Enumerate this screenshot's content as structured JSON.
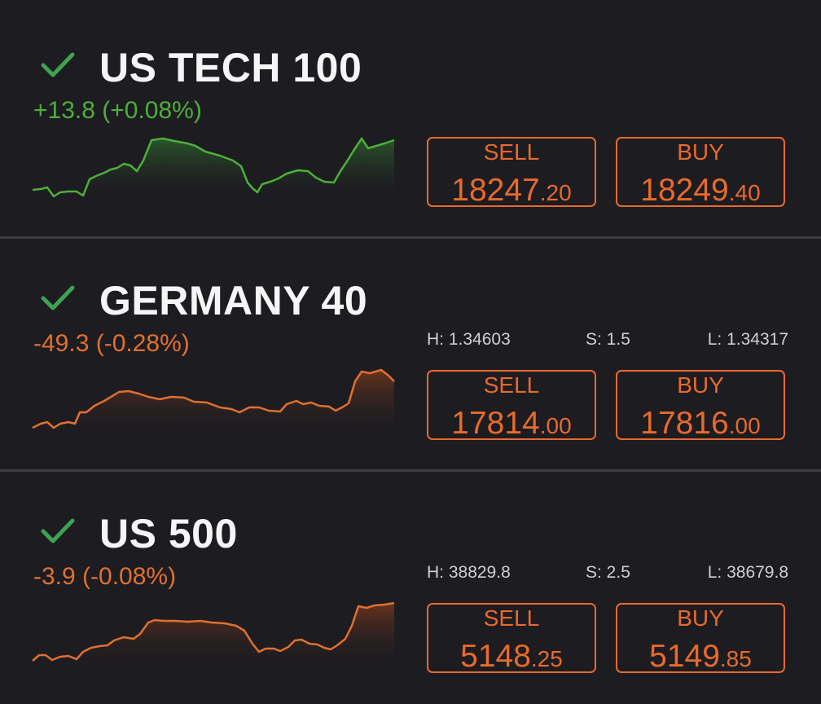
{
  "instruments": [
    {
      "name": "US TECH 100",
      "change": "+13.8 (+0.08%)",
      "trend": "up",
      "line_color": "#4caf3a",
      "stats": null,
      "sell": {
        "label": "SELL",
        "int": "18247",
        "dec": ".20"
      },
      "buy": {
        "label": "BUY",
        "int": "18249",
        "dec": ".40"
      }
    },
    {
      "name": "GERMANY 40",
      "change": "-49.3 (-0.28%)",
      "trend": "down",
      "line_color": "#e07030",
      "stats": {
        "h": "H: 1.34603",
        "s": "S: 1.5",
        "l": "L: 1.34317"
      },
      "sell": {
        "label": "SELL",
        "int": "17814",
        "dec": ".00"
      },
      "buy": {
        "label": "BUY",
        "int": "17816",
        "dec": ".00"
      }
    },
    {
      "name": "US 500",
      "change": "-3.9 (-0.08%)",
      "trend": "down",
      "line_color": "#e07030",
      "stats": {
        "h": "H: 38829.8",
        "s": "S: 2.5",
        "l": "L: 38679.8"
      },
      "sell": {
        "label": "SELL",
        "int": "5148",
        "dec": ".25"
      },
      "buy": {
        "label": "BUY",
        "int": "5149",
        "dec": ".85"
      }
    }
  ],
  "colors": {
    "background": "#1d1c21",
    "divider": "#3e3d43",
    "accent_orange": "#e86a2c",
    "check_green": "#3fa152"
  },
  "icons": {
    "check": "checkmark-icon"
  }
}
